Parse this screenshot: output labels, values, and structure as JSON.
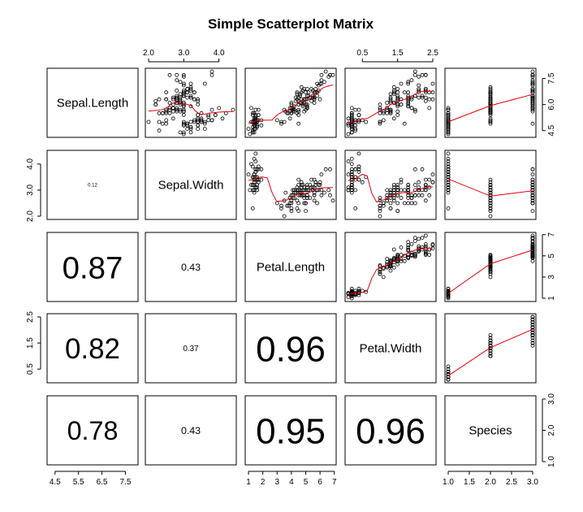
{
  "chart_data": {
    "type": "scatter_matrix",
    "title": "Simple Scatterplot Matrix",
    "variables": [
      "Sepal.Length",
      "Sepal.Width",
      "Petal.Length",
      "Petal.Width",
      "Species"
    ],
    "correlations": [
      {
        "row": 1,
        "col": 0,
        "label": "0.12"
      },
      {
        "row": 2,
        "col": 0,
        "label": "0.87"
      },
      {
        "row": 2,
        "col": 1,
        "label": "0.43"
      },
      {
        "row": 3,
        "col": 0,
        "label": "0.82"
      },
      {
        "row": 3,
        "col": 1,
        "label": "0.37"
      },
      {
        "row": 3,
        "col": 2,
        "label": "0.96"
      },
      {
        "row": 4,
        "col": 0,
        "label": "0.78"
      },
      {
        "row": 4,
        "col": 1,
        "label": "0.43"
      },
      {
        "row": 4,
        "col": 2,
        "label": "0.95"
      },
      {
        "row": 4,
        "col": 3,
        "label": "0.96"
      }
    ],
    "correlation_abs_values": [
      0.12,
      0.87,
      0.43,
      0.82,
      0.37,
      0.96,
      0.78,
      0.43,
      0.95,
      0.96
    ],
    "ranges": [
      [
        4.3,
        7.9
      ],
      [
        2.0,
        4.4
      ],
      [
        1.0,
        6.9
      ],
      [
        0.1,
        2.5
      ],
      [
        1,
        3
      ]
    ],
    "axes": {
      "top": [
        {
          "col": 1,
          "ticks": [
            2.0,
            3.0,
            4.0
          ],
          "labels": [
            "2.0",
            "3.0",
            "4.0"
          ]
        },
        {
          "col": 3,
          "ticks": [
            0.5,
            1.5,
            2.5
          ],
          "labels": [
            "0.5",
            "1.5",
            "2.5"
          ]
        }
      ],
      "bottom": [
        {
          "col": 0,
          "ticks": [
            4.5,
            5.5,
            6.5,
            7.5
          ],
          "labels": [
            "4.5",
            "5.5",
            "6.5",
            "7.5"
          ]
        },
        {
          "col": 2,
          "ticks": [
            1,
            2,
            3,
            4,
            5,
            6,
            7
          ],
          "labels": [
            "1",
            "2",
            "3",
            "4",
            "5",
            "6",
            "7"
          ]
        },
        {
          "col": 4,
          "ticks": [
            1.0,
            1.5,
            2.0,
            2.5,
            3.0
          ],
          "labels": [
            "1.0",
            "1.5",
            "2.0",
            "2.5",
            "3.0"
          ]
        }
      ],
      "left": [
        {
          "row": 1,
          "ticks": [
            2.0,
            3.0,
            4.0
          ],
          "labels": [
            "2.0",
            "3.0",
            "4.0"
          ]
        },
        {
          "row": 3,
          "ticks": [
            0.5,
            1.5,
            2.5
          ],
          "labels": [
            "0.5",
            "1.5",
            "2.5"
          ]
        }
      ],
      "right": [
        {
          "row": 0,
          "ticks": [
            4.5,
            6.0,
            7.5
          ],
          "labels": [
            "4.5",
            "6.0",
            "7.5"
          ]
        },
        {
          "row": 2,
          "ticks": [
            1,
            3,
            5,
            7
          ],
          "labels": [
            "1",
            "3",
            "5",
            "7"
          ]
        },
        {
          "row": 4,
          "ticks": [
            1.0,
            2.0,
            3.0
          ],
          "labels": [
            "1.0",
            "2.0",
            "3.0"
          ]
        }
      ]
    },
    "smoother_color": "#e8000b",
    "point_color": "#000000",
    "data": {
      "setosa": [
        [
          5.1,
          3.5,
          1.4,
          0.2
        ],
        [
          4.9,
          3.0,
          1.4,
          0.2
        ],
        [
          4.7,
          3.2,
          1.3,
          0.2
        ],
        [
          4.6,
          3.1,
          1.5,
          0.2
        ],
        [
          5.0,
          3.6,
          1.4,
          0.2
        ],
        [
          5.4,
          3.9,
          1.7,
          0.4
        ],
        [
          4.6,
          3.4,
          1.4,
          0.3
        ],
        [
          5.0,
          3.4,
          1.5,
          0.2
        ],
        [
          4.4,
          2.9,
          1.4,
          0.2
        ],
        [
          4.9,
          3.1,
          1.5,
          0.1
        ],
        [
          5.4,
          3.7,
          1.5,
          0.2
        ],
        [
          4.8,
          3.4,
          1.6,
          0.2
        ],
        [
          4.8,
          3.0,
          1.4,
          0.1
        ],
        [
          4.3,
          3.0,
          1.1,
          0.1
        ],
        [
          5.8,
          4.0,
          1.2,
          0.2
        ],
        [
          5.7,
          4.4,
          1.5,
          0.4
        ],
        [
          5.4,
          3.9,
          1.3,
          0.4
        ],
        [
          5.1,
          3.5,
          1.4,
          0.3
        ],
        [
          5.7,
          3.8,
          1.7,
          0.3
        ],
        [
          5.1,
          3.8,
          1.5,
          0.3
        ],
        [
          5.4,
          3.4,
          1.7,
          0.2
        ],
        [
          5.1,
          3.7,
          1.5,
          0.4
        ],
        [
          4.6,
          3.6,
          1.0,
          0.2
        ],
        [
          5.1,
          3.3,
          1.7,
          0.5
        ],
        [
          4.8,
          3.4,
          1.9,
          0.2
        ],
        [
          5.0,
          3.0,
          1.6,
          0.2
        ],
        [
          5.0,
          3.4,
          1.6,
          0.4
        ],
        [
          5.2,
          3.5,
          1.5,
          0.2
        ],
        [
          5.2,
          3.4,
          1.4,
          0.2
        ],
        [
          4.7,
          3.2,
          1.6,
          0.2
        ],
        [
          4.8,
          3.1,
          1.6,
          0.2
        ],
        [
          5.4,
          3.4,
          1.5,
          0.4
        ],
        [
          5.2,
          4.1,
          1.5,
          0.1
        ],
        [
          5.5,
          4.2,
          1.4,
          0.2
        ],
        [
          4.9,
          3.1,
          1.5,
          0.2
        ],
        [
          5.0,
          3.2,
          1.2,
          0.2
        ],
        [
          5.5,
          3.5,
          1.3,
          0.2
        ],
        [
          4.9,
          3.6,
          1.4,
          0.1
        ],
        [
          4.4,
          3.0,
          1.3,
          0.2
        ],
        [
          5.1,
          3.4,
          1.5,
          0.2
        ],
        [
          5.0,
          3.5,
          1.3,
          0.3
        ],
        [
          4.5,
          2.3,
          1.3,
          0.3
        ],
        [
          4.4,
          3.2,
          1.3,
          0.2
        ],
        [
          5.0,
          3.5,
          1.6,
          0.6
        ],
        [
          5.1,
          3.8,
          1.9,
          0.4
        ],
        [
          4.8,
          3.0,
          1.4,
          0.3
        ],
        [
          5.1,
          3.8,
          1.6,
          0.2
        ],
        [
          4.6,
          3.2,
          1.4,
          0.2
        ],
        [
          5.3,
          3.7,
          1.5,
          0.2
        ],
        [
          5.0,
          3.3,
          1.4,
          0.2
        ]
      ],
      "versicolor": [
        [
          7.0,
          3.2,
          4.7,
          1.4
        ],
        [
          6.4,
          3.2,
          4.5,
          1.5
        ],
        [
          6.9,
          3.1,
          4.9,
          1.5
        ],
        [
          5.5,
          2.3,
          4.0,
          1.3
        ],
        [
          6.5,
          2.8,
          4.6,
          1.5
        ],
        [
          5.7,
          2.8,
          4.5,
          1.3
        ],
        [
          6.3,
          3.3,
          4.7,
          1.6
        ],
        [
          4.9,
          2.4,
          3.3,
          1.0
        ],
        [
          6.6,
          2.9,
          4.6,
          1.3
        ],
        [
          5.2,
          2.7,
          3.9,
          1.4
        ],
        [
          5.0,
          2.0,
          3.5,
          1.0
        ],
        [
          5.9,
          3.0,
          4.2,
          1.5
        ],
        [
          6.0,
          2.2,
          4.0,
          1.0
        ],
        [
          6.1,
          2.9,
          4.7,
          1.4
        ],
        [
          5.6,
          2.9,
          3.6,
          1.3
        ],
        [
          6.7,
          3.1,
          4.4,
          1.4
        ],
        [
          5.6,
          3.0,
          4.5,
          1.5
        ],
        [
          5.8,
          2.7,
          4.1,
          1.0
        ],
        [
          6.2,
          2.2,
          4.5,
          1.5
        ],
        [
          5.6,
          2.5,
          3.9,
          1.1
        ],
        [
          5.9,
          3.2,
          4.8,
          1.8
        ],
        [
          6.1,
          2.8,
          4.0,
          1.3
        ],
        [
          6.3,
          2.5,
          4.9,
          1.5
        ],
        [
          6.1,
          2.8,
          4.7,
          1.2
        ],
        [
          6.4,
          2.9,
          4.3,
          1.3
        ],
        [
          6.6,
          3.0,
          4.4,
          1.4
        ],
        [
          6.8,
          2.8,
          4.8,
          1.4
        ],
        [
          6.7,
          3.0,
          5.0,
          1.7
        ],
        [
          6.0,
          2.9,
          4.5,
          1.5
        ],
        [
          5.7,
          2.6,
          3.5,
          1.0
        ],
        [
          5.5,
          2.4,
          3.8,
          1.1
        ],
        [
          5.5,
          2.4,
          3.7,
          1.0
        ],
        [
          5.8,
          2.7,
          3.9,
          1.2
        ],
        [
          6.0,
          2.7,
          5.1,
          1.6
        ],
        [
          5.4,
          3.0,
          4.5,
          1.5
        ],
        [
          6.0,
          3.4,
          4.5,
          1.6
        ],
        [
          6.7,
          3.1,
          4.7,
          1.5
        ],
        [
          6.3,
          2.3,
          4.4,
          1.3
        ],
        [
          5.6,
          3.0,
          4.1,
          1.3
        ],
        [
          5.5,
          2.5,
          4.0,
          1.3
        ],
        [
          5.5,
          2.6,
          4.4,
          1.2
        ],
        [
          6.1,
          3.0,
          4.6,
          1.4
        ],
        [
          5.8,
          2.6,
          4.0,
          1.2
        ],
        [
          5.0,
          2.3,
          3.3,
          1.0
        ],
        [
          5.6,
          2.7,
          4.2,
          1.3
        ],
        [
          5.7,
          3.0,
          4.2,
          1.2
        ],
        [
          5.7,
          2.9,
          4.2,
          1.3
        ],
        [
          6.2,
          2.9,
          4.3,
          1.3
        ],
        [
          5.1,
          2.5,
          3.0,
          1.1
        ],
        [
          5.7,
          2.8,
          4.1,
          1.3
        ]
      ],
      "virginica": [
        [
          6.3,
          3.3,
          6.0,
          2.5
        ],
        [
          5.8,
          2.7,
          5.1,
          1.9
        ],
        [
          7.1,
          3.0,
          5.9,
          2.1
        ],
        [
          6.3,
          2.9,
          5.6,
          1.8
        ],
        [
          6.5,
          3.0,
          5.8,
          2.2
        ],
        [
          7.6,
          3.0,
          6.6,
          2.1
        ],
        [
          4.9,
          2.5,
          4.5,
          1.7
        ],
        [
          7.3,
          2.9,
          6.3,
          1.8
        ],
        [
          6.7,
          2.5,
          5.8,
          1.8
        ],
        [
          7.2,
          3.6,
          6.1,
          2.5
        ],
        [
          6.5,
          3.2,
          5.1,
          2.0
        ],
        [
          6.4,
          2.7,
          5.3,
          1.9
        ],
        [
          6.8,
          3.0,
          5.5,
          2.1
        ],
        [
          5.7,
          2.5,
          5.0,
          2.0
        ],
        [
          5.8,
          2.8,
          5.1,
          2.4
        ],
        [
          6.4,
          3.2,
          5.3,
          2.3
        ],
        [
          6.5,
          3.0,
          5.5,
          1.8
        ],
        [
          7.7,
          3.8,
          6.7,
          2.2
        ],
        [
          7.7,
          2.6,
          6.9,
          2.3
        ],
        [
          6.0,
          2.2,
          5.0,
          1.5
        ],
        [
          6.9,
          3.2,
          5.7,
          2.3
        ],
        [
          5.6,
          2.8,
          4.9,
          2.0
        ],
        [
          7.7,
          2.8,
          6.7,
          2.0
        ],
        [
          6.3,
          2.7,
          4.9,
          1.8
        ],
        [
          6.7,
          3.3,
          5.7,
          2.1
        ],
        [
          7.2,
          3.2,
          6.0,
          1.8
        ],
        [
          6.2,
          2.8,
          4.8,
          1.8
        ],
        [
          6.1,
          3.0,
          4.9,
          1.8
        ],
        [
          6.4,
          2.8,
          5.6,
          2.1
        ],
        [
          7.2,
          3.0,
          5.8,
          1.6
        ],
        [
          7.4,
          2.8,
          6.1,
          1.9
        ],
        [
          7.9,
          3.8,
          6.4,
          2.0
        ],
        [
          6.4,
          2.8,
          5.6,
          2.2
        ],
        [
          6.3,
          2.8,
          5.1,
          1.5
        ],
        [
          6.1,
          2.6,
          5.6,
          1.4
        ],
        [
          7.7,
          3.0,
          6.1,
          2.3
        ],
        [
          6.3,
          3.4,
          5.6,
          2.4
        ],
        [
          6.4,
          3.1,
          5.5,
          1.8
        ],
        [
          6.0,
          3.0,
          4.8,
          1.8
        ],
        [
          6.9,
          3.1,
          5.4,
          2.1
        ],
        [
          6.7,
          3.1,
          5.6,
          2.4
        ],
        [
          6.9,
          3.1,
          5.1,
          2.3
        ],
        [
          5.8,
          2.7,
          5.1,
          1.9
        ],
        [
          6.8,
          3.2,
          5.9,
          2.3
        ],
        [
          6.7,
          3.3,
          5.7,
          2.5
        ],
        [
          6.7,
          3.0,
          5.2,
          2.3
        ],
        [
          6.3,
          2.5,
          5.0,
          1.9
        ],
        [
          6.5,
          3.0,
          5.2,
          2.0
        ],
        [
          6.2,
          3.4,
          5.4,
          2.3
        ],
        [
          5.9,
          3.0,
          5.1,
          1.8
        ]
      ]
    }
  }
}
